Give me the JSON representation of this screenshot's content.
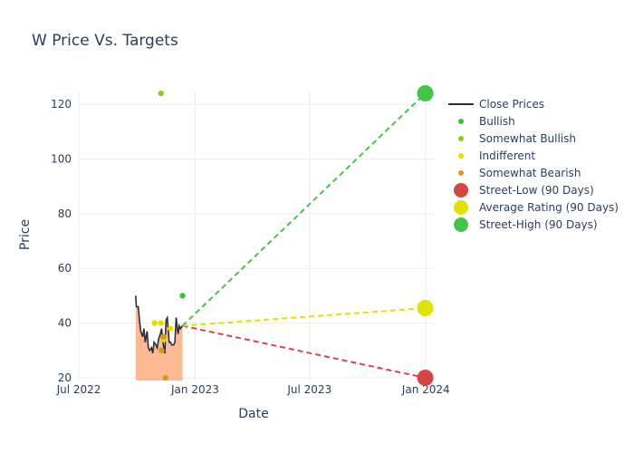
{
  "chart_data": {
    "type": "line",
    "title": "W Price Vs. Targets",
    "xlabel": "Date",
    "ylabel": "Price",
    "xlim": [
      "2022-07-01",
      "2024-01-15"
    ],
    "ylim": [
      19,
      125
    ],
    "x_ticks": [
      {
        "date": "2022-07-01",
        "label": "Jul 2022"
      },
      {
        "date": "2023-01-01",
        "label": "Jan 2023"
      },
      {
        "date": "2023-07-01",
        "label": "Jul 2023"
      },
      {
        "date": "2024-01-01",
        "label": "Jan 2024"
      }
    ],
    "y_ticks": [
      20,
      40,
      60,
      80,
      100,
      120
    ],
    "grid": true,
    "legend_position": "right",
    "colors": {
      "close": "#2a2f3a",
      "area": "#fdb48e",
      "bullish": "#3ec13e",
      "somewhat_bullish": "#93c81e",
      "indifferent": "#e0e000",
      "somewhat_bearish": "#d49a1c",
      "street_low": "#d64545",
      "average": "#e2e200",
      "street_high": "#45c44b"
    },
    "close_prices": [
      [
        "2022-09-29",
        50
      ],
      [
        "2022-09-30",
        46
      ],
      [
        "2022-10-03",
        46
      ],
      [
        "2022-10-05",
        41
      ],
      [
        "2022-10-07",
        37
      ],
      [
        "2022-10-10",
        35
      ],
      [
        "2022-10-12",
        38
      ],
      [
        "2022-10-14",
        33
      ],
      [
        "2022-10-17",
        37
      ],
      [
        "2022-10-19",
        31
      ],
      [
        "2022-10-21",
        30
      ],
      [
        "2022-10-24",
        31
      ],
      [
        "2022-10-26",
        29
      ],
      [
        "2022-10-28",
        33
      ],
      [
        "2022-10-31",
        32
      ],
      [
        "2022-11-02",
        31
      ],
      [
        "2022-11-04",
        34
      ],
      [
        "2022-11-07",
        36
      ],
      [
        "2022-11-09",
        38
      ],
      [
        "2022-11-11",
        33
      ],
      [
        "2022-11-14",
        29
      ],
      [
        "2022-11-16",
        41
      ],
      [
        "2022-11-18",
        42
      ],
      [
        "2022-11-21",
        33
      ],
      [
        "2022-11-23",
        33
      ],
      [
        "2022-11-25",
        32
      ],
      [
        "2022-11-28",
        32
      ],
      [
        "2022-11-30",
        33
      ],
      [
        "2022-12-02",
        42
      ],
      [
        "2022-12-05",
        36
      ],
      [
        "2022-12-07",
        39
      ],
      [
        "2022-12-09",
        38
      ],
      [
        "2022-12-12",
        39
      ]
    ],
    "series": [
      {
        "name": "Close Prices",
        "kind": "line"
      },
      {
        "name": "Bullish",
        "kind": "marker",
        "points": [
          [
            "2022-12-12",
            50
          ]
        ]
      },
      {
        "name": "Somewhat Bullish",
        "kind": "marker",
        "points": [
          [
            "2022-11-08",
            124
          ]
        ]
      },
      {
        "name": "Indifferent",
        "kind": "marker",
        "points": [
          [
            "2022-10-29",
            40
          ],
          [
            "2022-11-08",
            40
          ],
          [
            "2022-11-23",
            38
          ],
          [
            "2022-11-12",
            34
          ]
        ]
      },
      {
        "name": "Somewhat Bearish",
        "kind": "marker",
        "points": [
          [
            "2022-11-09",
            30
          ],
          [
            "2022-11-12",
            35
          ],
          [
            "2022-11-15",
            20
          ]
        ]
      },
      {
        "name": "Street-Low (90 Days)",
        "kind": "target",
        "points": [
          [
            "2023-12-31",
            20
          ]
        ]
      },
      {
        "name": "Average Rating (90 Days)",
        "kind": "target",
        "points": [
          [
            "2023-12-31",
            45.5
          ]
        ]
      },
      {
        "name": "Street-High (90 Days)",
        "kind": "target",
        "points": [
          [
            "2023-12-31",
            124
          ]
        ]
      }
    ],
    "projection_start": [
      "2022-12-12",
      39
    ]
  }
}
